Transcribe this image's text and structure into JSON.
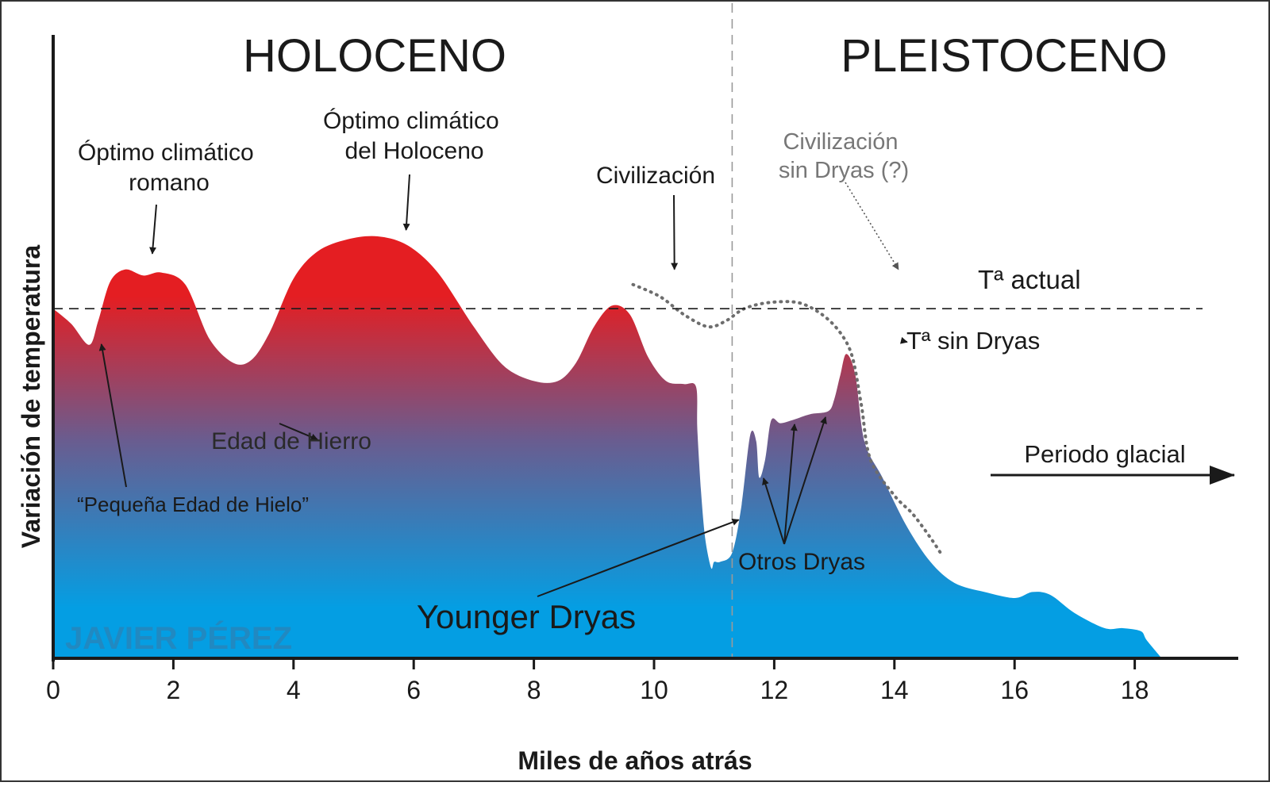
{
  "chart_data": {
    "type": "area",
    "title_left": "HOLOCENO",
    "title_right": "PLEISTOCENO",
    "xlabel": "Miles de años atrás",
    "ylabel": "Variación de temperatura",
    "watermark": "JAVIER PÉREZ",
    "xlim": [
      0,
      19.5
    ],
    "ylim": [
      0,
      100
    ],
    "xticks": [
      0,
      2,
      4,
      6,
      8,
      10,
      12,
      14,
      16,
      18
    ],
    "xtick_labels": [
      "0",
      "2",
      "4",
      "6",
      "8",
      "10",
      "12",
      "14",
      "16",
      "18"
    ],
    "boundary_x": 11.3,
    "reference_line": {
      "label": "Tª actual",
      "y": 58
    },
    "series": [
      {
        "name": "Variación de temperatura",
        "style": "filled-area-gradient",
        "x": [
          0,
          0.3,
          0.6,
          0.75,
          0.95,
          1.2,
          1.5,
          1.8,
          2.2,
          2.6,
          3.0,
          3.3,
          3.6,
          4.0,
          4.4,
          4.9,
          5.4,
          5.9,
          6.4,
          7.0,
          7.5,
          8.0,
          8.4,
          8.7,
          9.0,
          9.3,
          9.6,
          9.9,
          10.2,
          10.5,
          10.7,
          10.72,
          10.78,
          10.85,
          10.95,
          11.0,
          11.1,
          11.3,
          11.45,
          11.6,
          11.7,
          11.75,
          11.85,
          11.95,
          12.1,
          12.3,
          12.6,
          12.9,
          13.0,
          13.1,
          13.2,
          13.35,
          13.5,
          13.8,
          14.2,
          14.6,
          15.0,
          15.5,
          16.0,
          16.3,
          16.6,
          17.0,
          17.5,
          17.8,
          18.1,
          18.2,
          18.45
        ],
        "y": [
          58,
          55.5,
          52,
          56,
          62.5,
          64.5,
          63.5,
          64,
          62,
          53,
          49,
          49.5,
          54,
          63,
          67.5,
          69.5,
          70,
          68.5,
          64,
          55,
          48.5,
          46,
          46,
          49,
          55,
          58.5,
          57,
          50,
          46,
          45.5,
          45,
          38,
          28,
          20,
          15,
          16,
          16,
          17.5,
          25,
          37,
          36,
          30,
          33,
          39.5,
          39,
          39.5,
          40.5,
          41,
          43,
          47,
          50.5,
          47,
          36,
          30,
          22,
          16,
          12.5,
          11,
          10,
          11,
          10.5,
          7.5,
          5,
          5,
          4.5,
          3,
          0
        ]
      },
      {
        "name": "Tª sin Dryas",
        "style": "dotted",
        "x": [
          9.65,
          10.1,
          10.5,
          10.9,
          11.2,
          11.5,
          11.9,
          12.4,
          12.8,
          13.1,
          13.3,
          13.45,
          13.6,
          14.0,
          14.3,
          14.6,
          14.8
        ],
        "y": [
          62,
          60,
          57,
          55,
          56,
          58,
          59,
          59,
          57,
          54,
          50,
          42,
          33,
          27,
          24,
          20,
          17
        ]
      }
    ],
    "annotations": [
      {
        "text": "Óptimo climático romano",
        "lines": [
          "Óptimo climático",
          "romano"
        ],
        "arrow_to_x": 1.65,
        "arrow_to_y": 64.5
      },
      {
        "text": "Óptimo climático del Holoceno",
        "lines": [
          "Óptimo climático",
          "del Holoceno"
        ],
        "arrow_to_x": 5.9,
        "arrow_to_y": 70
      },
      {
        "text": "Civilización",
        "lines": [
          "Civilización"
        ],
        "arrow_to_x": 10.3,
        "arrow_to_y": 64
      },
      {
        "text": "Civilización sin Dryas (?)",
        "lines": [
          "Civilización",
          "sin Dryas (?)"
        ],
        "arrow_to_x": 13.3,
        "arrow_to_y": 64,
        "style": "gray-dotted-arrow"
      },
      {
        "text": "Tª sin Dryas",
        "lines": [
          "Tª sin Dryas"
        ],
        "arrow_to_x": 13.3,
        "arrow_to_y": 50.5
      },
      {
        "text": "Edad de Hierro",
        "lines": [
          "Edad de Hierro"
        ],
        "arrow_to_x": 3.5,
        "arrow_to_y": 48
      },
      {
        "text": "“Pequeña Edad de Hielo”",
        "lines": [
          "“Pequeña Edad de Hielo”"
        ],
        "arrow_to_x": 0.75,
        "arrow_to_y": 52.5
      },
      {
        "text": "Younger Dryas",
        "lines": [
          "Younger Dryas"
        ],
        "arrow_to_x": 10.55,
        "arrow_to_y": 23.5
      },
      {
        "text": "Otros Dryas",
        "lines": [
          "Otros Dryas"
        ],
        "arrow_targets": [
          [
            11.75,
            29
          ],
          [
            12.3,
            38.5
          ],
          [
            12.85,
            38
          ]
        ]
      },
      {
        "text": "Periodo glacial",
        "lines": [
          "Periodo glacial"
        ],
        "arrow_from_x": 15.6,
        "arrow_to_x": 19.3,
        "arrow_y": 29
      }
    ],
    "colors": {
      "warm": "#e41e22",
      "mid": "#6a5c8f",
      "cold": "#049ee3",
      "annotation_gray": "#777777",
      "watermark": "#2b82b6",
      "axis": "#1a1a1a"
    }
  }
}
